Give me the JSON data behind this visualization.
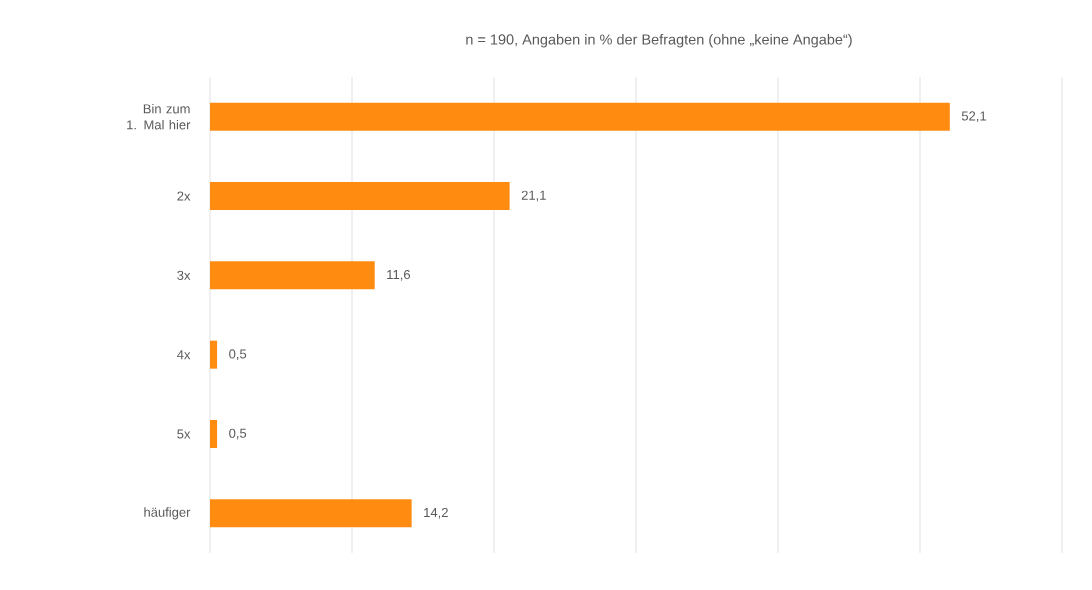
{
  "chart_data": {
    "type": "bar",
    "orientation": "horizontal",
    "title": "n = 190, Angaben in % der Befragten (ohne „keine Angabe“)",
    "categories": [
      "Bin zum 1. Mal hier",
      "2x",
      "3x",
      "4x",
      "5x",
      "häufiger"
    ],
    "values": [
      52.1,
      21.1,
      11.6,
      0.5,
      0.5,
      14.2
    ],
    "value_labels": [
      "52,1",
      "21,1",
      "11,6",
      "0,5",
      "0,5",
      "14,2"
    ],
    "color": "#ff8b10",
    "xlim": [
      0,
      60
    ],
    "xticks": [
      0,
      10,
      20,
      30,
      40,
      50,
      60
    ],
    "tick_labels": "y",
    "grid": "x"
  }
}
